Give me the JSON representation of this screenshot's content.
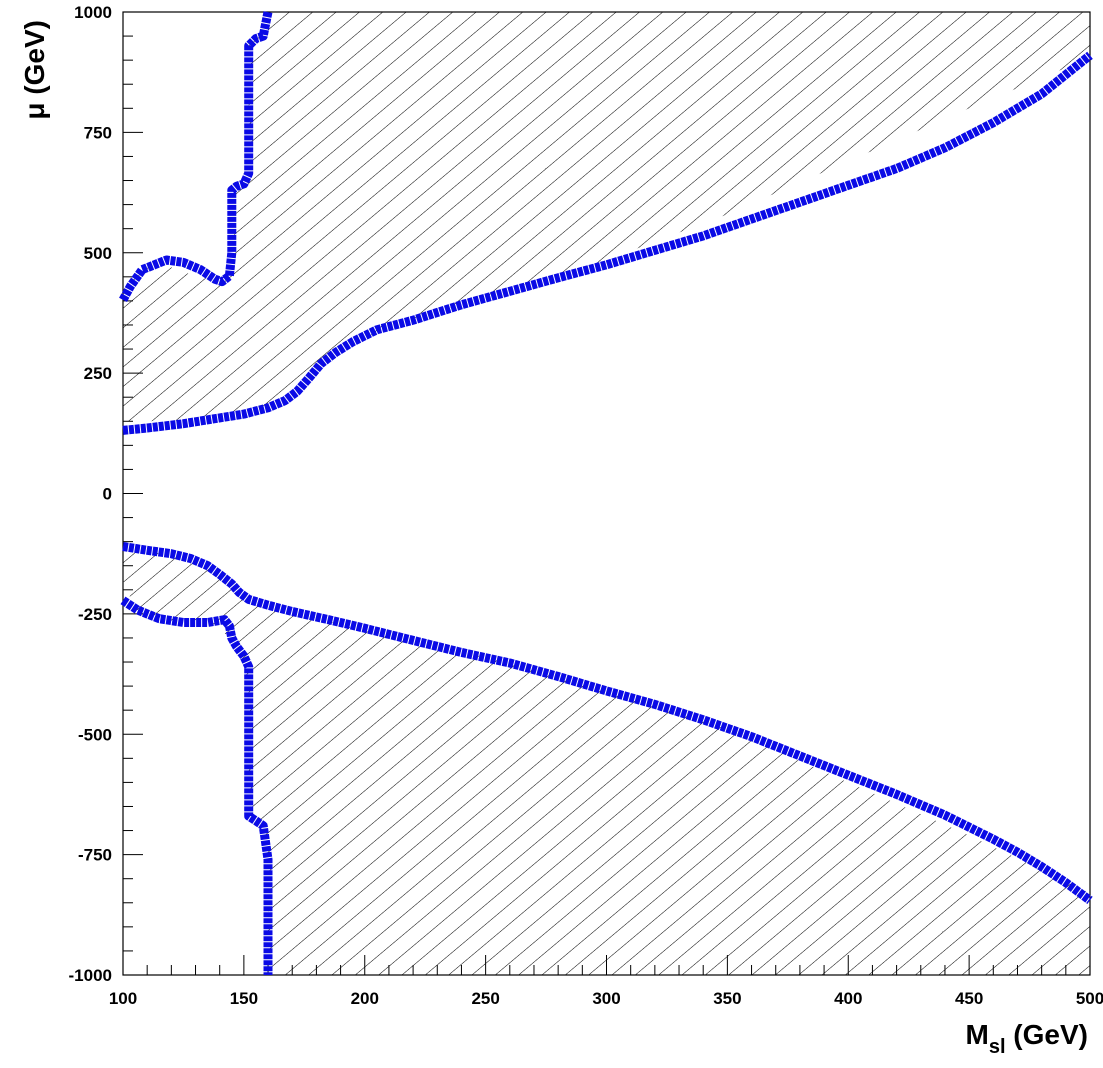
{
  "chart_data": {
    "type": "line",
    "title": "",
    "xlabel": {
      "main": "M",
      "sub": "sl",
      "rest": " (GeV)"
    },
    "ylabel": "μ (GeV)",
    "xlim": [
      100,
      500
    ],
    "ylim": [
      -1000,
      1000
    ],
    "x_ticks": [
      100,
      150,
      200,
      250,
      300,
      350,
      400,
      450,
      500
    ],
    "y_ticks": [
      -1000,
      -750,
      -500,
      -250,
      0,
      250,
      500,
      750,
      1000
    ],
    "grid": false,
    "legend": "none",
    "colors": {
      "curve": "#0a0ae6",
      "hatch": "#000000",
      "axis": "#000000"
    },
    "hatched_regions": [
      {
        "name": "upper-excluded-region",
        "polygon": [
          [
            100,
            150
          ],
          [
            110,
            150
          ],
          [
            125,
            152
          ],
          [
            140,
            162
          ],
          [
            160,
            182
          ],
          [
            170,
            205
          ],
          [
            180,
            260
          ],
          [
            190,
            300
          ],
          [
            210,
            345
          ],
          [
            250,
            410
          ],
          [
            300,
            485
          ],
          [
            350,
            580
          ],
          [
            400,
            690
          ],
          [
            450,
            800
          ],
          [
            500,
            905
          ],
          [
            500,
            1000
          ],
          [
            160,
            1000
          ],
          [
            160,
            960
          ],
          [
            155,
            945
          ],
          [
            152,
            940
          ],
          [
            152,
            680
          ],
          [
            148,
            640
          ],
          [
            146,
            620
          ],
          [
            146,
            460
          ],
          [
            140,
            440
          ],
          [
            128,
            455
          ],
          [
            120,
            470
          ],
          [
            110,
            470
          ],
          [
            104,
            445
          ],
          [
            100,
            410
          ]
        ]
      },
      {
        "name": "lower-excluded-region",
        "polygon": [
          [
            100,
            -120
          ],
          [
            120,
            -125
          ],
          [
            135,
            -140
          ],
          [
            145,
            -180
          ],
          [
            152,
            -220
          ],
          [
            170,
            -245
          ],
          [
            200,
            -285
          ],
          [
            250,
            -340
          ],
          [
            300,
            -410
          ],
          [
            350,
            -490
          ],
          [
            400,
            -600
          ],
          [
            450,
            -710
          ],
          [
            500,
            -830
          ],
          [
            500,
            -1000
          ],
          [
            160,
            -1000
          ],
          [
            160,
            -760
          ],
          [
            156,
            -680
          ],
          [
            152,
            -660
          ],
          [
            152,
            -390
          ],
          [
            148,
            -330
          ],
          [
            142,
            -290
          ],
          [
            136,
            -268
          ],
          [
            125,
            -270
          ],
          [
            115,
            -270
          ],
          [
            105,
            -240
          ],
          [
            100,
            -180
          ]
        ]
      }
    ],
    "series": [
      {
        "points": [
          [
            100,
            131
          ],
          [
            110,
            136
          ],
          [
            125,
            145
          ],
          [
            140,
            157
          ],
          [
            150,
            165
          ],
          [
            160,
            178
          ],
          [
            167,
            193
          ],
          [
            172,
            212
          ],
          [
            177,
            240
          ],
          [
            182,
            270
          ],
          [
            188,
            293
          ],
          [
            195,
            315
          ],
          [
            205,
            340
          ],
          [
            220,
            360
          ],
          [
            240,
            392
          ],
          [
            260,
            420
          ],
          [
            280,
            448
          ],
          [
            300,
            475
          ],
          [
            320,
            505
          ],
          [
            340,
            535
          ],
          [
            360,
            570
          ],
          [
            380,
            605
          ],
          [
            400,
            640
          ],
          [
            420,
            675
          ],
          [
            440,
            718
          ],
          [
            460,
            770
          ],
          [
            480,
            830
          ],
          [
            500,
            910
          ]
        ]
      },
      {
        "points": [
          [
            100,
            402
          ],
          [
            103,
            430
          ],
          [
            108,
            465
          ],
          [
            118,
            485
          ],
          [
            125,
            480
          ],
          [
            132,
            465
          ],
          [
            138,
            445
          ],
          [
            141,
            440
          ],
          [
            144,
            452
          ],
          [
            145,
            500
          ],
          [
            145,
            630
          ],
          [
            147,
            638
          ],
          [
            150,
            643
          ],
          [
            152,
            665
          ],
          [
            152,
            930
          ],
          [
            155,
            945
          ],
          [
            158,
            950
          ],
          [
            160,
            1000
          ]
        ]
      },
      {
        "points": [
          [
            100,
            -110
          ],
          [
            110,
            -118
          ],
          [
            120,
            -125
          ],
          [
            128,
            -135
          ],
          [
            135,
            -150
          ],
          [
            140,
            -168
          ],
          [
            145,
            -188
          ],
          [
            148,
            -205
          ],
          [
            152,
            -220
          ],
          [
            160,
            -232
          ],
          [
            170,
            -245
          ],
          [
            185,
            -262
          ],
          [
            200,
            -280
          ],
          [
            220,
            -305
          ],
          [
            240,
            -330
          ],
          [
            260,
            -352
          ],
          [
            280,
            -380
          ],
          [
            300,
            -410
          ],
          [
            320,
            -438
          ],
          [
            340,
            -470
          ],
          [
            360,
            -505
          ],
          [
            380,
            -545
          ],
          [
            400,
            -585
          ],
          [
            420,
            -625
          ],
          [
            440,
            -668
          ],
          [
            460,
            -718
          ],
          [
            470,
            -745
          ],
          [
            480,
            -775
          ],
          [
            490,
            -808
          ],
          [
            500,
            -845
          ]
        ]
      },
      {
        "points": [
          [
            100,
            -222
          ],
          [
            106,
            -242
          ],
          [
            110,
            -250
          ],
          [
            115,
            -260
          ],
          [
            125,
            -268
          ],
          [
            135,
            -268
          ],
          [
            142,
            -262
          ],
          [
            144,
            -275
          ],
          [
            145,
            -300
          ],
          [
            147,
            -318
          ],
          [
            150,
            -338
          ],
          [
            152,
            -360
          ],
          [
            152,
            -670
          ],
          [
            155,
            -680
          ],
          [
            158,
            -690
          ],
          [
            160,
            -760
          ],
          [
            160,
            -1000
          ]
        ]
      }
    ]
  }
}
